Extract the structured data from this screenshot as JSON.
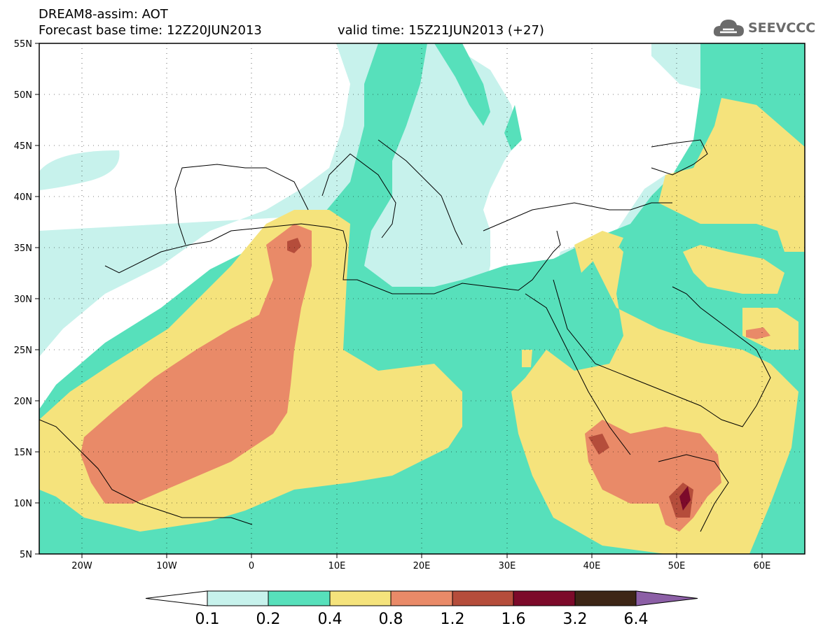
{
  "header": {
    "title": "DREAM8-assim: AOT",
    "base_time": "Forecast base time: 12Z20JUN2013",
    "valid_time": "valid time: 15Z21JUN2013 (+27)"
  },
  "logo": {
    "text": "SEEVCCC",
    "icon": "cloud-icon"
  },
  "map": {
    "lon_range": [
      -25,
      65
    ],
    "lat_range": [
      5,
      55
    ],
    "lat_ticks": [
      "5N",
      "10N",
      "15N",
      "20N",
      "25N",
      "30N",
      "35N",
      "40N",
      "45N",
      "50N",
      "55N"
    ],
    "lon_ticks": [
      "20W",
      "10W",
      "0",
      "10E",
      "20E",
      "30E",
      "40E",
      "50E",
      "60E"
    ],
    "grid": "dotted"
  },
  "legend": {
    "labels": [
      "0.1",
      "0.2",
      "0.4",
      "0.8",
      "1.2",
      "1.6",
      "3.2",
      "6.4"
    ],
    "colors": [
      "#ffffff",
      "#c7f2ec",
      "#57e0bb",
      "#f5e37c",
      "#e98a68",
      "#b54d3b",
      "#7c0a2a",
      "#3d2616",
      "#8c5fa6"
    ]
  },
  "colors": {
    "c01": "#c7f2ec",
    "c02": "#57e0bb",
    "c04": "#f5e37c",
    "c08": "#e98a68",
    "c12": "#b54d3b",
    "c16": "#7c0a2a"
  }
}
